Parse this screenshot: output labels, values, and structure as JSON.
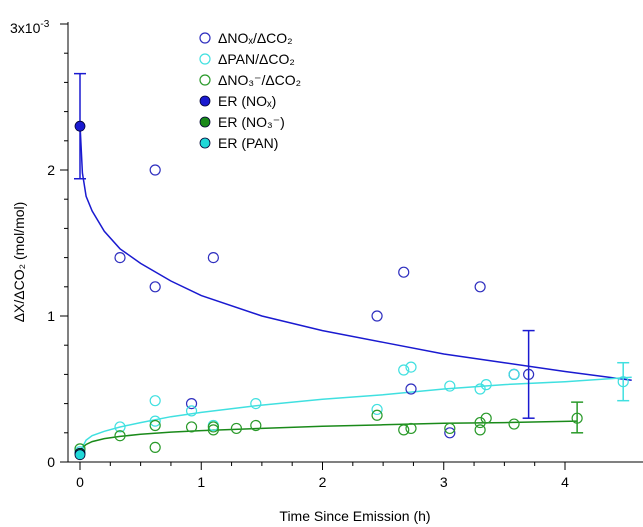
{
  "chart_data": {
    "type": "scatter",
    "xlabel": "Time Since Emission (h)",
    "ylabel": "ΔX/ΔCO₂ (mol/mol)",
    "y_multiplier_label": "3x10",
    "y_multiplier_exp": "-3",
    "xlim": [
      -0.1,
      4.55
    ],
    "ylim": [
      -0.1,
      3.0
    ],
    "x_ticks": [
      0,
      1,
      2,
      3,
      4
    ],
    "y_ticks": [
      0,
      1,
      2
    ],
    "grid": false,
    "legend_position": "top-center",
    "series": [
      {
        "name": "ΔNOₓ/ΔCO₂",
        "marker": "open-circle",
        "color": "#2f2fbf",
        "points": [
          [
            0.33,
            1.4
          ],
          [
            0.62,
            2.0
          ],
          [
            0.62,
            1.2
          ],
          [
            0.92,
            0.4
          ],
          [
            1.1,
            1.4
          ],
          [
            2.45,
            1.0
          ],
          [
            2.67,
            1.3
          ],
          [
            2.73,
            0.5
          ],
          [
            3.05,
            0.2
          ],
          [
            3.3,
            1.2
          ],
          [
            3.58,
            0.6
          ],
          [
            3.7,
            0.6
          ]
        ]
      },
      {
        "name": "ΔPAN/ΔCO₂",
        "marker": "open-circle",
        "color": "#40e0e0",
        "points": [
          [
            0.0,
            0.07
          ],
          [
            0.33,
            0.24
          ],
          [
            0.62,
            0.28
          ],
          [
            0.62,
            0.42
          ],
          [
            0.92,
            0.35
          ],
          [
            1.1,
            0.25
          ],
          [
            1.45,
            0.4
          ],
          [
            2.45,
            0.36
          ],
          [
            2.67,
            0.63
          ],
          [
            2.73,
            0.65
          ],
          [
            3.05,
            0.52
          ],
          [
            3.3,
            0.5
          ],
          [
            3.35,
            0.53
          ],
          [
            3.58,
            0.6
          ],
          [
            4.48,
            0.55
          ]
        ]
      },
      {
        "name": "ΔNO₃⁻/ΔCO₂",
        "marker": "open-circle",
        "color": "#2a9a2a",
        "points": [
          [
            0.0,
            0.09
          ],
          [
            0.33,
            0.18
          ],
          [
            0.62,
            0.1
          ],
          [
            0.62,
            0.25
          ],
          [
            0.92,
            0.24
          ],
          [
            1.1,
            0.22
          ],
          [
            1.1,
            0.24
          ],
          [
            1.29,
            0.23
          ],
          [
            1.45,
            0.25
          ],
          [
            2.45,
            0.32
          ],
          [
            2.67,
            0.22
          ],
          [
            2.73,
            0.23
          ],
          [
            3.05,
            0.23
          ],
          [
            3.3,
            0.22
          ],
          [
            3.3,
            0.27
          ],
          [
            3.35,
            0.3
          ],
          [
            3.58,
            0.26
          ],
          [
            4.1,
            0.3
          ]
        ]
      },
      {
        "name": "ER (NOₓ)",
        "marker": "filled-circle",
        "color": "#1a1ad0",
        "points": [
          [
            0.0,
            2.3
          ]
        ]
      },
      {
        "name": "ER (NO₃⁻)",
        "marker": "filled-circle",
        "color": "#1a8a1a",
        "points": [
          [
            0.0,
            0.06
          ]
        ]
      },
      {
        "name": "ER (PAN)",
        "marker": "filled-circle",
        "color": "#20d8d8",
        "points": [
          [
            0.0,
            0.05
          ]
        ]
      }
    ],
    "error_bars": [
      {
        "x": 0.0,
        "low": 1.94,
        "high": 2.66,
        "color": "#1a1ad0"
      },
      {
        "x": 3.7,
        "low": 0.3,
        "high": 0.9,
        "color": "#1a1ad0"
      },
      {
        "x": 4.48,
        "low": 0.42,
        "high": 0.68,
        "color": "#40e0e0"
      },
      {
        "x": 4.1,
        "low": 0.2,
        "high": 0.41,
        "color": "#2a9a2a"
      }
    ],
    "fits": [
      {
        "color": "#1a1ad0",
        "points": [
          [
            0.001,
            2.3
          ],
          [
            0.02,
            1.98
          ],
          [
            0.05,
            1.82
          ],
          [
            0.1,
            1.72
          ],
          [
            0.2,
            1.58
          ],
          [
            0.33,
            1.46
          ],
          [
            0.5,
            1.36
          ],
          [
            0.75,
            1.24
          ],
          [
            1.0,
            1.14
          ],
          [
            1.5,
            1.0
          ],
          [
            2.0,
            0.9
          ],
          [
            2.5,
            0.82
          ],
          [
            3.0,
            0.74
          ],
          [
            3.5,
            0.68
          ],
          [
            4.0,
            0.62
          ],
          [
            4.55,
            0.56
          ]
        ]
      },
      {
        "color": "#40e0e0",
        "points": [
          [
            0.0,
            0.07
          ],
          [
            0.05,
            0.15
          ],
          [
            0.1,
            0.18
          ],
          [
            0.2,
            0.21
          ],
          [
            0.33,
            0.24
          ],
          [
            0.5,
            0.27
          ],
          [
            0.75,
            0.31
          ],
          [
            1.0,
            0.34
          ],
          [
            1.5,
            0.39
          ],
          [
            2.0,
            0.43
          ],
          [
            2.5,
            0.46
          ],
          [
            3.0,
            0.5
          ],
          [
            3.5,
            0.53
          ],
          [
            4.0,
            0.55
          ],
          [
            4.55,
            0.58
          ]
        ]
      },
      {
        "color": "#1a8a1a",
        "points": [
          [
            0.0,
            0.08
          ],
          [
            0.05,
            0.12
          ],
          [
            0.1,
            0.14
          ],
          [
            0.2,
            0.16
          ],
          [
            0.33,
            0.175
          ],
          [
            0.5,
            0.19
          ],
          [
            0.75,
            0.205
          ],
          [
            1.0,
            0.215
          ],
          [
            1.5,
            0.23
          ],
          [
            2.0,
            0.245
          ],
          [
            2.5,
            0.255
          ],
          [
            3.0,
            0.265
          ],
          [
            3.5,
            0.27
          ],
          [
            4.1,
            0.28
          ]
        ]
      }
    ]
  }
}
